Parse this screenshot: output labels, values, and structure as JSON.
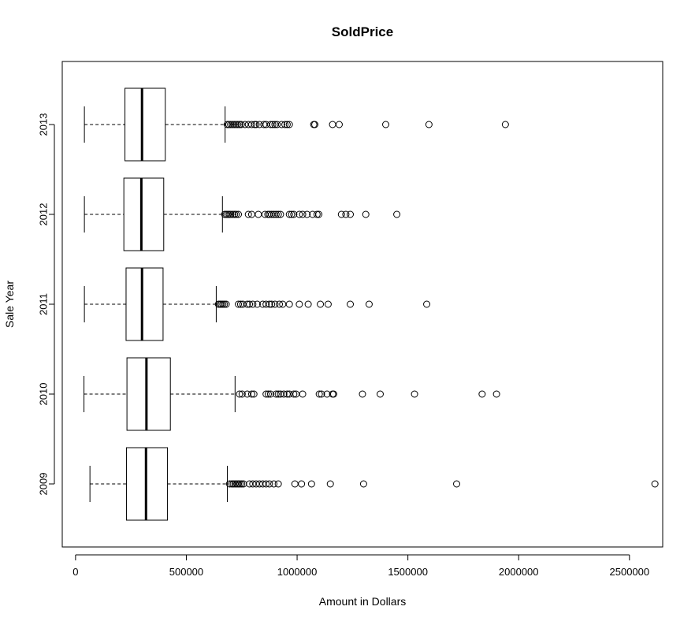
{
  "chart_data": {
    "type": "boxplot",
    "orientation": "horizontal",
    "title": "SoldPrice",
    "xlabel": "Amount in Dollars",
    "ylabel": "Sale Year",
    "xlim": [
      -60000,
      2650000
    ],
    "x_ticks": [
      0,
      500000,
      1000000,
      1500000,
      2000000,
      2500000
    ],
    "x_tick_labels": [
      "0",
      "500000",
      "1000000",
      "1500000",
      "2000000",
      "2500000"
    ],
    "categories": [
      "2009",
      "2010",
      "2011",
      "2012",
      "2013"
    ],
    "grid": false,
    "legend": "none",
    "series": [
      {
        "category": "2009",
        "whisker_low": 65000,
        "q1": 230000,
        "median": 318000,
        "q3": 415000,
        "whisker_high": 685000,
        "outliers": [
          695000,
          705000,
          712000,
          720000,
          728000,
          735000,
          742000,
          750000,
          758000,
          785000,
          800000,
          815000,
          830000,
          845000,
          860000,
          875000,
          895000,
          915000,
          990000,
          1020000,
          1065000,
          1150000,
          1300000,
          1720000,
          2615000
        ]
      },
      {
        "category": "2010",
        "whisker_low": 38000,
        "q1": 232000,
        "median": 320000,
        "q3": 428000,
        "whisker_high": 720000,
        "outliers": [
          740000,
          752000,
          775000,
          795000,
          805000,
          860000,
          870000,
          880000,
          905000,
          915000,
          925000,
          940000,
          955000,
          965000,
          985000,
          995000,
          1025000,
          1100000,
          1110000,
          1135000,
          1160000,
          1165000,
          1295000,
          1375000,
          1530000,
          1835000,
          1900000
        ]
      },
      {
        "category": "2011",
        "whisker_low": 40000,
        "q1": 228000,
        "median": 300000,
        "q3": 395000,
        "whisker_high": 635000,
        "outliers": [
          645000,
          652000,
          658000,
          665000,
          672000,
          680000,
          735000,
          745000,
          755000,
          775000,
          785000,
          800000,
          820000,
          845000,
          860000,
          875000,
          885000,
          900000,
          920000,
          935000,
          965000,
          1010000,
          1050000,
          1105000,
          1140000,
          1240000,
          1325000,
          1585000
        ]
      },
      {
        "category": "2012",
        "whisker_low": 40000,
        "q1": 218000,
        "median": 297000,
        "q3": 398000,
        "whisker_high": 663000,
        "outliers": [
          673000,
          680000,
          687000,
          694000,
          701000,
          710000,
          718000,
          725000,
          735000,
          780000,
          795000,
          825000,
          855000,
          868000,
          875000,
          885000,
          895000,
          905000,
          915000,
          925000,
          965000,
          975000,
          985000,
          1010000,
          1025000,
          1045000,
          1070000,
          1090000,
          1098000,
          1200000,
          1220000,
          1240000,
          1310000,
          1450000
        ]
      },
      {
        "category": "2013",
        "whisker_low": 40000,
        "q1": 223000,
        "median": 300000,
        "q3": 405000,
        "whisker_high": 675000,
        "outliers": [
          685000,
          692000,
          700000,
          708000,
          716000,
          724000,
          732000,
          740000,
          748000,
          765000,
          780000,
          795000,
          808000,
          815000,
          830000,
          850000,
          860000,
          880000,
          890000,
          900000,
          910000,
          930000,
          945000,
          955000,
          965000,
          1075000,
          1080000,
          1160000,
          1190000,
          1400000,
          1595000,
          1940000
        ]
      }
    ]
  }
}
